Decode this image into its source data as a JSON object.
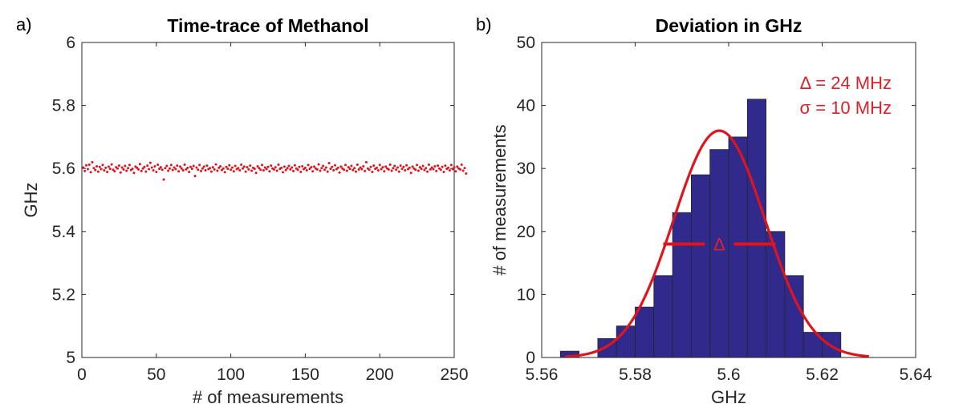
{
  "chart_data": [
    {
      "type": "scatter",
      "panel_label": "a)",
      "title": "Time-trace of Methanol",
      "xlabel": "# of measurements",
      "ylabel": "GHz",
      "xlim": [
        0,
        250
      ],
      "ylim": [
        5,
        6
      ],
      "xticks": [
        "0",
        "50",
        "100",
        "150",
        "200",
        "250"
      ],
      "yticks": [
        "5",
        "5.2",
        "5.4",
        "5.6",
        "5.8",
        "6"
      ],
      "marker_color": "#e0141c",
      "points_y": [
        5.603,
        5.592,
        5.61,
        5.598,
        5.612,
        5.588,
        5.62,
        5.601,
        5.595,
        5.607,
        5.59,
        5.605,
        5.598,
        5.611,
        5.594,
        5.602,
        5.589,
        5.606,
        5.599,
        5.613,
        5.596,
        5.591,
        5.604,
        5.6,
        5.609,
        5.587,
        5.603,
        5.597,
        5.608,
        5.593,
        5.601,
        5.611,
        5.595,
        5.599,
        5.586,
        5.606,
        5.602,
        5.597,
        5.614,
        5.592,
        5.6,
        5.605,
        5.59,
        5.609,
        5.598,
        5.618,
        5.603,
        5.594,
        5.607,
        5.589,
        5.612,
        5.599,
        5.604,
        5.596,
        5.565,
        5.601,
        5.608,
        5.593,
        5.6,
        5.611,
        5.595,
        5.603,
        5.598,
        5.609,
        5.591,
        5.606,
        5.6,
        5.594,
        5.612,
        5.597,
        5.602,
        5.589,
        5.605,
        5.599,
        5.608,
        5.576,
        5.603,
        5.596,
        5.611,
        5.592,
        5.6,
        5.606,
        5.594,
        5.609,
        5.598,
        5.601,
        5.59,
        5.604,
        5.597,
        5.613,
        5.593,
        5.602,
        5.607,
        5.595,
        5.6,
        5.588,
        5.605,
        5.599,
        5.61,
        5.596,
        5.603,
        5.591,
        5.608,
        5.598,
        5.601,
        5.594,
        5.612,
        5.6,
        5.606,
        5.59,
        5.604,
        5.597,
        5.609,
        5.593,
        5.602,
        5.599,
        5.586,
        5.607,
        5.601,
        5.596,
        5.611,
        5.594,
        5.603,
        5.598,
        5.605,
        5.591,
        5.609,
        5.6,
        5.597,
        5.604,
        5.593,
        5.612,
        5.599,
        5.602,
        5.588,
        5.606,
        5.595,
        5.601,
        5.608,
        5.597,
        5.603,
        5.592,
        5.61,
        5.6,
        5.596,
        5.605,
        5.589,
        5.607,
        5.598,
        5.602,
        5.594,
        5.611,
        5.599,
        5.604,
        5.591,
        5.606,
        5.6,
        5.597,
        5.613,
        5.593,
        5.601,
        5.608,
        5.596,
        5.603,
        5.59,
        5.617,
        5.599,
        5.605,
        5.594,
        5.61,
        5.598,
        5.602,
        5.587,
        5.606,
        5.6,
        5.596,
        5.611,
        5.593,
        5.604,
        5.599,
        5.608,
        5.595,
        5.601,
        5.59,
        5.612,
        5.597,
        5.603,
        5.598,
        5.607,
        5.592,
        5.62,
        5.6,
        5.596,
        5.605,
        5.589,
        5.609,
        5.599,
        5.602,
        5.594,
        5.611,
        5.598,
        5.604,
        5.591,
        5.606,
        5.6,
        5.597,
        5.612,
        5.593,
        5.601,
        5.608,
        5.596,
        5.603,
        5.59,
        5.609,
        5.599,
        5.605,
        5.594,
        5.61,
        5.598,
        5.602,
        5.586,
        5.606,
        5.6,
        5.596,
        5.611,
        5.593,
        5.604,
        5.599,
        5.608,
        5.595,
        5.601,
        5.59,
        5.612,
        5.597,
        5.603,
        5.598,
        5.607,
        5.592,
        5.609,
        5.6,
        5.596,
        5.605,
        5.589,
        5.609,
        5.599,
        5.602,
        5.594,
        5.611,
        5.598,
        5.604,
        5.591,
        5.606,
        5.6,
        5.597,
        5.612,
        5.593,
        5.601,
        5.584
      ]
    },
    {
      "type": "bar",
      "panel_label": "b)",
      "title": "Deviation in GHz",
      "xlabel": "GHz",
      "ylabel": "# of measurements",
      "xlim": [
        5.56,
        5.64
      ],
      "ylim": [
        0,
        50
      ],
      "xticks": [
        "5.56",
        "5.58",
        "5.6",
        "5.62",
        "5.64"
      ],
      "yticks": [
        "0",
        "10",
        "20",
        "30",
        "40",
        "50"
      ],
      "bar_color": "#2f2a8c",
      "bin_width": 0.004,
      "bin_left_edges": [
        5.564,
        5.568,
        5.572,
        5.576,
        5.58,
        5.584,
        5.588,
        5.592,
        5.596,
        5.6,
        5.604,
        5.608,
        5.612,
        5.616,
        5.62
      ],
      "counts": [
        1,
        0,
        3,
        5,
        8,
        13,
        23,
        29,
        33,
        35,
        41,
        20,
        13,
        4,
        4
      ],
      "fit": {
        "type": "gaussian",
        "mean": 5.598,
        "amplitude": 36,
        "sigma": 0.0098,
        "x_range": [
          5.565,
          5.63
        ],
        "color": "#e0141c"
      },
      "fwhm_marker": {
        "y": 18,
        "x_range": [
          5.586,
          5.61
        ],
        "label": "Δ"
      },
      "annotations": [
        "Δ = 24 MHz",
        "σ = 10 MHz"
      ]
    }
  ]
}
